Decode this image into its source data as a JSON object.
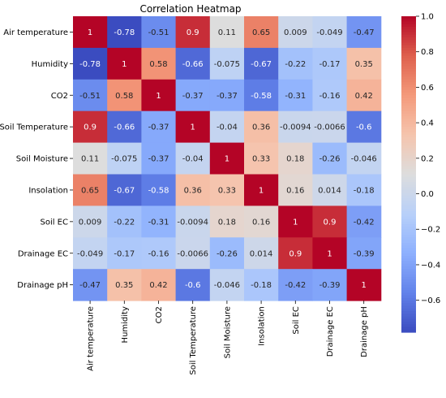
{
  "chart_data": {
    "type": "heatmap",
    "title": "Correlation Heatmap",
    "row_labels": [
      "Air temperature",
      "Humidity",
      "CO2",
      "Soil Temperature",
      "Soil Moisture",
      "Insolation",
      "Soil EC",
      "Drainage EC",
      "Drainage pH"
    ],
    "col_labels": [
      "Air temperature",
      "Humidity",
      "CO2",
      "Soil Temperature",
      "Soil Moisture",
      "Insolation",
      "Soil EC",
      "Drainage EC",
      "Drainage pH"
    ],
    "values": [
      [
        1,
        -0.78,
        -0.51,
        0.9,
        0.11,
        0.65,
        0.009,
        -0.049,
        -0.47
      ],
      [
        -0.78,
        1,
        0.58,
        -0.66,
        -0.075,
        -0.67,
        -0.22,
        -0.17,
        0.35
      ],
      [
        -0.51,
        0.58,
        1,
        -0.37,
        -0.37,
        -0.58,
        -0.31,
        -0.16,
        0.42
      ],
      [
        0.9,
        -0.66,
        -0.37,
        1,
        -0.04,
        0.36,
        -0.0094,
        -0.0066,
        -0.6
      ],
      [
        0.11,
        -0.075,
        -0.37,
        -0.04,
        1,
        0.33,
        0.18,
        -0.26,
        -0.046
      ],
      [
        0.65,
        -0.67,
        -0.58,
        0.36,
        0.33,
        1,
        0.16,
        0.014,
        -0.18
      ],
      [
        0.009,
        -0.22,
        -0.31,
        -0.0094,
        0.18,
        0.16,
        1,
        0.9,
        -0.42
      ],
      [
        -0.049,
        -0.17,
        -0.16,
        -0.0066,
        -0.26,
        0.014,
        0.9,
        1,
        -0.39
      ],
      [
        -0.47,
        0.35,
        0.42,
        -0.6,
        -0.046,
        -0.18,
        -0.42,
        -0.39,
        1
      ]
    ],
    "value_labels": [
      [
        "1",
        "-0.78",
        "-0.51",
        "0.9",
        "0.11",
        "0.65",
        "0.009",
        "-0.049",
        "-0.47"
      ],
      [
        "-0.78",
        "1",
        "0.58",
        "-0.66",
        "-0.075",
        "-0.67",
        "-0.22",
        "-0.17",
        "0.35"
      ],
      [
        "-0.51",
        "0.58",
        "1",
        "-0.37",
        "-0.37",
        "-0.58",
        "-0.31",
        "-0.16",
        "0.42"
      ],
      [
        "0.9",
        "-0.66",
        "-0.37",
        "1",
        "-0.04",
        "0.36",
        "-0.0094",
        "-0.0066",
        "-0.6"
      ],
      [
        "0.11",
        "-0.075",
        "-0.37",
        "-0.04",
        "1",
        "0.33",
        "0.18",
        "-0.26",
        "-0.046"
      ],
      [
        "0.65",
        "-0.67",
        "-0.58",
        "0.36",
        "0.33",
        "1",
        "0.16",
        "0.014",
        "-0.18"
      ],
      [
        "0.009",
        "-0.22",
        "-0.31",
        "-0.0094",
        "0.18",
        "0.16",
        "1",
        "0.9",
        "-0.42"
      ],
      [
        "-0.049",
        "-0.17",
        "-0.16",
        "-0.0066",
        "-0.26",
        "0.014",
        "0.9",
        "1",
        "-0.39"
      ],
      [
        "-0.47",
        "0.35",
        "0.42",
        "-0.6",
        "-0.046",
        "-0.18",
        "-0.42",
        "-0.39",
        "1"
      ]
    ],
    "colorbar": {
      "colormap": "coolwarm",
      "vmin": -0.78,
      "vmax": 1.0,
      "ticks": [
        1.0,
        0.8,
        0.6,
        0.4,
        0.2,
        0.0,
        -0.2,
        -0.4,
        -0.6
      ],
      "tick_labels": [
        "1.0",
        "0.8",
        "0.6",
        "0.4",
        "0.2",
        "0.0",
        "−0.2",
        "−0.4",
        "−0.6"
      ]
    }
  }
}
